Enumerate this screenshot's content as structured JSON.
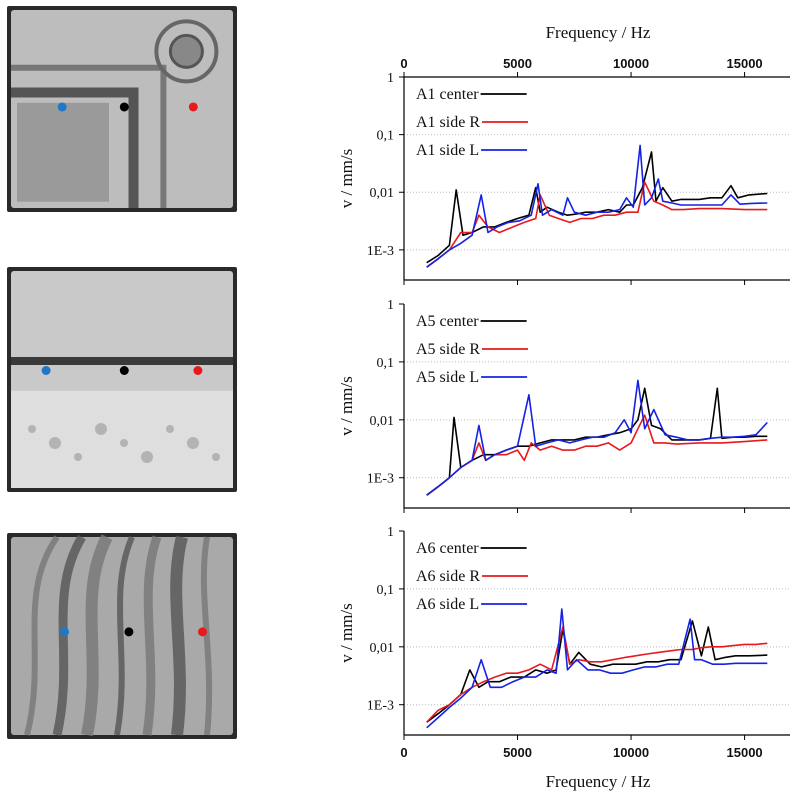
{
  "figure": {
    "top_axis_label": "Frequency / Hz",
    "bottom_axis_label": "Frequency / Hz"
  },
  "photos": [
    {
      "sample": "A1",
      "base": "#bdbdbd",
      "points": [
        {
          "color": "#1f77c8",
          "fx": 0.24
        },
        {
          "color": "#000000",
          "fx": 0.51
        },
        {
          "color": "#e8191c",
          "fx": 0.81
        }
      ]
    },
    {
      "sample": "A5",
      "base": "#c9c9c9",
      "points": [
        {
          "color": "#1f77c8",
          "fx": 0.17
        },
        {
          "color": "#000000",
          "fx": 0.51
        },
        {
          "color": "#e8191c",
          "fx": 0.83
        }
      ]
    },
    {
      "sample": "A6",
      "base": "#a9a9a9",
      "points": [
        {
          "color": "#1f77c8",
          "fx": 0.25
        },
        {
          "color": "#000000",
          "fx": 0.53
        },
        {
          "color": "#e8191c",
          "fx": 0.85
        }
      ]
    }
  ],
  "chart_data": [
    {
      "type": "line",
      "x_label": "Frequency / Hz",
      "x_axis_position": "top",
      "ylabel": "v / mm/s",
      "y_scale": "log",
      "xlim": [
        0,
        17000
      ],
      "ylim": [
        0.0003,
        1
      ],
      "x_ticks": [
        0,
        5000,
        10000,
        15000
      ],
      "y_tick_values": [
        1,
        0.1,
        0.01,
        0.001
      ],
      "y_tick_labels": [
        "1",
        "0,1",
        "0,01",
        "1E-3"
      ],
      "grid": "horizontal dotted",
      "legend_position": "top-left",
      "series": [
        {
          "name": "A1 center",
          "color": "#000000",
          "x": [
            1000,
            1500,
            2000,
            2300,
            2600,
            3000,
            3500,
            4000,
            4500,
            5000,
            5500,
            5800,
            6000,
            6300,
            6800,
            7200,
            7600,
            8000,
            8500,
            9000,
            9500,
            9800,
            10100,
            10500,
            10900,
            11100,
            11400,
            11800,
            12200,
            13000,
            13500,
            14000,
            14400,
            14700,
            15200,
            16000
          ],
          "y": [
            0.0006,
            0.0008,
            0.0012,
            0.011,
            0.0018,
            0.002,
            0.0025,
            0.0025,
            0.003,
            0.0035,
            0.004,
            0.012,
            0.0045,
            0.0055,
            0.0045,
            0.004,
            0.0042,
            0.0045,
            0.0045,
            0.005,
            0.0045,
            0.006,
            0.006,
            0.012,
            0.05,
            0.007,
            0.012,
            0.007,
            0.0075,
            0.0075,
            0.008,
            0.008,
            0.013,
            0.008,
            0.009,
            0.0095
          ]
        },
        {
          "name": "A1 side R",
          "color": "#e8191c",
          "x": [
            1000,
            1500,
            2000,
            2500,
            3000,
            3300,
            3700,
            4200,
            4800,
            5300,
            5800,
            6000,
            6400,
            6800,
            7300,
            7800,
            8300,
            8800,
            9300,
            9800,
            10300,
            10600,
            11000,
            11400,
            11800,
            12300,
            13000,
            14000,
            15000,
            16000
          ],
          "y": [
            0.0005,
            0.0007,
            0.001,
            0.002,
            0.002,
            0.004,
            0.0025,
            0.002,
            0.0025,
            0.003,
            0.0035,
            0.009,
            0.004,
            0.0035,
            0.003,
            0.0035,
            0.0035,
            0.004,
            0.004,
            0.0045,
            0.0045,
            0.015,
            0.007,
            0.006,
            0.005,
            0.005,
            0.0052,
            0.0052,
            0.005,
            0.005
          ]
        },
        {
          "name": "A1 side L",
          "color": "#1422e6",
          "x": [
            1000,
            1500,
            2000,
            2500,
            3000,
            3400,
            3700,
            4100,
            4600,
            5100,
            5600,
            5900,
            6100,
            6500,
            7000,
            7200,
            7500,
            8000,
            8500,
            9000,
            9500,
            9800,
            10100,
            10400,
            10600,
            10900,
            11200,
            11400,
            11800,
            12200,
            13000,
            14000,
            14400,
            14800,
            15300,
            16000
          ],
          "y": [
            0.0005,
            0.0007,
            0.001,
            0.0013,
            0.0018,
            0.009,
            0.002,
            0.0025,
            0.003,
            0.0032,
            0.004,
            0.014,
            0.004,
            0.005,
            0.004,
            0.008,
            0.0045,
            0.004,
            0.0045,
            0.0045,
            0.005,
            0.008,
            0.0055,
            0.065,
            0.006,
            0.008,
            0.017,
            0.007,
            0.0065,
            0.006,
            0.006,
            0.006,
            0.009,
            0.0062,
            0.0064,
            0.0065
          ]
        }
      ]
    },
    {
      "type": "line",
      "ylabel": "v / mm/s",
      "y_scale": "log",
      "xlim": [
        0,
        17000
      ],
      "ylim": [
        0.0003,
        1
      ],
      "x_ticks": [
        0,
        5000,
        10000,
        15000
      ],
      "y_tick_values": [
        1,
        0.1,
        0.01,
        0.001
      ],
      "y_tick_labels": [
        "1",
        "0,1",
        "0,01",
        "1E-3"
      ],
      "grid": "horizontal dotted",
      "legend_position": "top-left",
      "series": [
        {
          "name": "A5 center",
          "color": "#000000",
          "x": [
            1000,
            1500,
            2000,
            2200,
            2500,
            3000,
            3500,
            4000,
            4500,
            5000,
            5500,
            6000,
            6500,
            7000,
            7500,
            8000,
            8500,
            9000,
            9500,
            10000,
            10300,
            10600,
            10900,
            11300,
            11800,
            12300,
            13000,
            13500,
            13800,
            14000,
            14500,
            15000,
            15500,
            16000
          ],
          "y": [
            0.0005,
            0.0007,
            0.001,
            0.011,
            0.0015,
            0.002,
            0.0025,
            0.0025,
            0.003,
            0.0035,
            0.0035,
            0.004,
            0.0045,
            0.0045,
            0.0045,
            0.005,
            0.005,
            0.0055,
            0.006,
            0.007,
            0.01,
            0.035,
            0.008,
            0.007,
            0.0045,
            0.0045,
            0.0045,
            0.0048,
            0.035,
            0.0048,
            0.005,
            0.005,
            0.0052,
            0.0052
          ]
        },
        {
          "name": "A5 side R",
          "color": "#e8191c",
          "x": [
            1000,
            1500,
            2000,
            2500,
            3000,
            3300,
            3600,
            4000,
            4500,
            5000,
            5300,
            5600,
            6000,
            6500,
            7000,
            7500,
            8000,
            8500,
            9000,
            9500,
            10000,
            10300,
            10600,
            11000,
            11500,
            12000,
            13000,
            14000,
            15000,
            16000
          ],
          "y": [
            0.0005,
            0.0007,
            0.001,
            0.0015,
            0.002,
            0.004,
            0.002,
            0.0025,
            0.0025,
            0.003,
            0.002,
            0.004,
            0.003,
            0.0035,
            0.003,
            0.003,
            0.0035,
            0.0035,
            0.004,
            0.003,
            0.004,
            0.007,
            0.012,
            0.004,
            0.004,
            0.0038,
            0.004,
            0.004,
            0.0042,
            0.0045
          ]
        },
        {
          "name": "A5 side L",
          "color": "#1422e6",
          "x": [
            1000,
            1500,
            2000,
            2500,
            3000,
            3300,
            3600,
            4000,
            4500,
            5000,
            5500,
            5800,
            6300,
            6800,
            7300,
            7800,
            8300,
            8800,
            9300,
            9700,
            10000,
            10300,
            10600,
            11000,
            11500,
            12000,
            12500,
            13000,
            13500,
            14000,
            14500,
            15000,
            15500,
            16000
          ],
          "y": [
            0.0005,
            0.0007,
            0.001,
            0.0015,
            0.002,
            0.008,
            0.002,
            0.0025,
            0.003,
            0.0035,
            0.027,
            0.0035,
            0.004,
            0.0045,
            0.004,
            0.0045,
            0.005,
            0.005,
            0.006,
            0.01,
            0.006,
            0.048,
            0.007,
            0.015,
            0.0055,
            0.005,
            0.0045,
            0.0045,
            0.0048,
            0.005,
            0.005,
            0.0052,
            0.0055,
            0.009
          ]
        }
      ]
    },
    {
      "type": "line",
      "x_label": "Frequency / Hz",
      "x_axis_position": "bottom",
      "ylabel": "v / mm/s",
      "y_scale": "log",
      "xlim": [
        0,
        17000
      ],
      "ylim": [
        0.0003,
        1
      ],
      "x_ticks": [
        0,
        5000,
        10000,
        15000
      ],
      "y_tick_values": [
        1,
        0.1,
        0.01,
        0.001
      ],
      "y_tick_labels": [
        "1",
        "0,1",
        "0,01",
        "1E-3"
      ],
      "grid": "horizontal dotted",
      "legend_position": "top-left",
      "series": [
        {
          "name": "A6 center",
          "color": "#000000",
          "x": [
            1000,
            1500,
            2000,
            2500,
            2900,
            3300,
            3700,
            4200,
            4700,
            5300,
            5800,
            6300,
            6700,
            7000,
            7300,
            7700,
            8200,
            8700,
            9200,
            9700,
            10200,
            10700,
            11200,
            11700,
            12200,
            12700,
            13100,
            13400,
            13700,
            14100,
            14600,
            15200,
            16000
          ],
          "y": [
            0.0005,
            0.0007,
            0.001,
            0.0015,
            0.004,
            0.002,
            0.0025,
            0.0025,
            0.003,
            0.003,
            0.004,
            0.0035,
            0.004,
            0.02,
            0.005,
            0.008,
            0.005,
            0.0045,
            0.005,
            0.005,
            0.005,
            0.0055,
            0.0055,
            0.006,
            0.006,
            0.028,
            0.007,
            0.022,
            0.006,
            0.0065,
            0.007,
            0.007,
            0.0072
          ]
        },
        {
          "name": "A6 side R",
          "color": "#e8191c",
          "x": [
            1000,
            1500,
            2000,
            2500,
            3000,
            3500,
            4000,
            4500,
            5000,
            5500,
            6000,
            6500,
            7000,
            7300,
            7700,
            8200,
            8700,
            9200,
            9700,
            10200,
            10700,
            11200,
            11700,
            12200,
            12700,
            13000,
            13500,
            14000,
            14500,
            15000,
            15500,
            16000
          ],
          "y": [
            0.0005,
            0.0008,
            0.001,
            0.0015,
            0.002,
            0.0025,
            0.003,
            0.0035,
            0.0035,
            0.004,
            0.005,
            0.004,
            0.022,
            0.005,
            0.006,
            0.0055,
            0.0055,
            0.006,
            0.0065,
            0.007,
            0.0075,
            0.008,
            0.0085,
            0.009,
            0.009,
            0.0095,
            0.01,
            0.01,
            0.0105,
            0.011,
            0.011,
            0.0115
          ]
        },
        {
          "name": "A6 side L",
          "color": "#1422e6",
          "x": [
            1000,
            1500,
            2000,
            2500,
            3000,
            3400,
            3800,
            4300,
            4800,
            5300,
            5800,
            6300,
            6700,
            6950,
            7200,
            7600,
            8100,
            8600,
            9100,
            9600,
            10100,
            10600,
            11100,
            11600,
            12100,
            12600,
            12800,
            13100,
            13600,
            14100,
            14600,
            15100,
            16000
          ],
          "y": [
            0.0004,
            0.0006,
            0.0009,
            0.0013,
            0.002,
            0.006,
            0.002,
            0.002,
            0.0025,
            0.003,
            0.003,
            0.004,
            0.0035,
            0.045,
            0.004,
            0.006,
            0.004,
            0.004,
            0.0035,
            0.0035,
            0.004,
            0.0045,
            0.0045,
            0.005,
            0.005,
            0.03,
            0.006,
            0.006,
            0.005,
            0.005,
            0.0052,
            0.0052,
            0.0052
          ]
        }
      ]
    }
  ]
}
